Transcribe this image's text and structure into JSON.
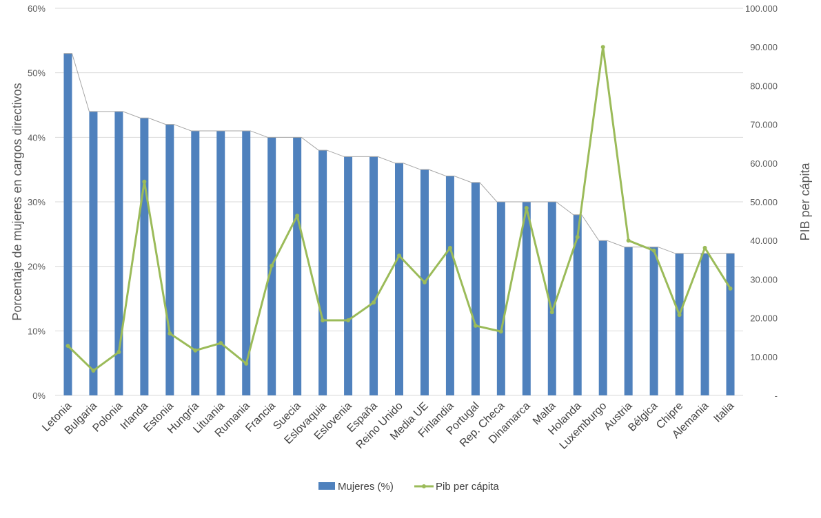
{
  "chart_data": {
    "type": "bar",
    "title": "",
    "xlabel": "",
    "ylabel": "Porcentaje de mujeres en cargos directivos",
    "y2label": "PIB per cápita",
    "ylim": [
      0,
      60
    ],
    "y2lim": [
      0,
      100000
    ],
    "grid": true,
    "legend_position": "bottom",
    "y_ticks": [
      "0%",
      "10%",
      "20%",
      "30%",
      "40%",
      "50%",
      "60%"
    ],
    "y2_ticks": [
      "-",
      "10.000",
      "20.000",
      "30.000",
      "40.000",
      "50.000",
      "60.000",
      "70.000",
      "80.000",
      "90.000",
      "100.000"
    ],
    "categories": [
      "Letonia",
      "Bulgaria",
      "Polonia",
      "Irlanda",
      "Estonia",
      "Hungría",
      "Lituania",
      "Rumania",
      "Francia",
      "Suecia",
      "Eslovaquia",
      "Eslovenia",
      "España",
      "Reino Unido",
      "Media UE",
      "Finlandia",
      "Portugal",
      "Rep. Checa",
      "Dinamarca",
      "Malta",
      "Holanda",
      "Luxemburgo",
      "Austria",
      "Bélgica",
      "Chipre",
      "Alemania",
      "Italia"
    ],
    "series": [
      {
        "name": "Mujeres (%)",
        "type": "bar",
        "axis": "left",
        "color": "#4f81bd",
        "values": [
          53,
          44,
          44,
          43,
          42,
          41,
          41,
          41,
          40,
          40,
          38,
          37,
          37,
          36,
          35,
          34,
          33,
          30,
          30,
          30,
          28,
          24,
          23,
          23,
          22,
          22,
          22
        ]
      },
      {
        "name": "Pib per cápita",
        "type": "line",
        "axis": "right",
        "color": "#9bbb59",
        "values": [
          12800,
          6400,
          11200,
          55200,
          16000,
          11600,
          13500,
          8200,
          33500,
          46400,
          19400,
          19400,
          24000,
          36100,
          29200,
          38100,
          18000,
          16500,
          48400,
          21500,
          40900,
          90000,
          40000,
          37400,
          20800,
          38100,
          27600
        ]
      }
    ]
  }
}
